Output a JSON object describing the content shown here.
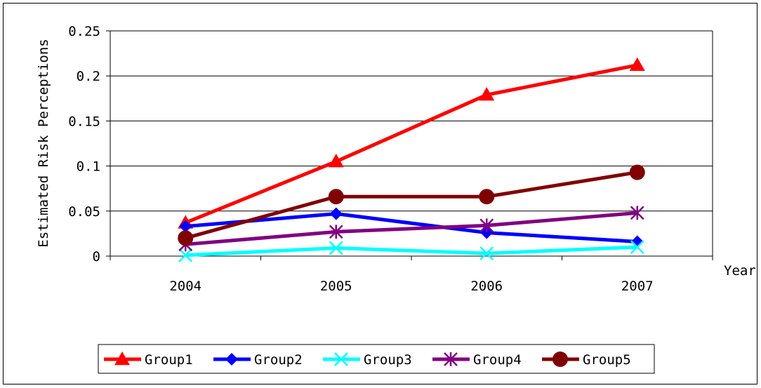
{
  "chart_data": {
    "type": "line",
    "title": "",
    "xlabel": "Year",
    "ylabel": "Estimated Risk Perceptions",
    "categories": [
      "2004",
      "2005",
      "2006",
      "2007"
    ],
    "ylim": [
      0,
      0.25
    ],
    "yticks": [
      0,
      0.05,
      0.1,
      0.15,
      0.2,
      0.25
    ],
    "ytick_labels": [
      "0",
      "0.05",
      "0.1",
      "0.15",
      "0.2",
      "0.25"
    ],
    "grid": true,
    "legend_position": "bottom",
    "series": [
      {
        "name": "Group1",
        "values": [
          0.037,
          0.105,
          0.179,
          0.212
        ],
        "color": "#ff0000",
        "marker": "triangle"
      },
      {
        "name": "Group2",
        "values": [
          0.033,
          0.047,
          0.026,
          0.016
        ],
        "color": "#0000ff",
        "marker": "diamond"
      },
      {
        "name": "Group3",
        "values": [
          0.001,
          0.009,
          0.003,
          0.01
        ],
        "color": "#00ffff",
        "marker": "x"
      },
      {
        "name": "Group4",
        "values": [
          0.013,
          0.027,
          0.034,
          0.048
        ],
        "color": "#800080",
        "marker": "star"
      },
      {
        "name": "Group5",
        "values": [
          0.02,
          0.066,
          0.066,
          0.093
        ],
        "color": "#800000",
        "marker": "circle"
      }
    ]
  }
}
